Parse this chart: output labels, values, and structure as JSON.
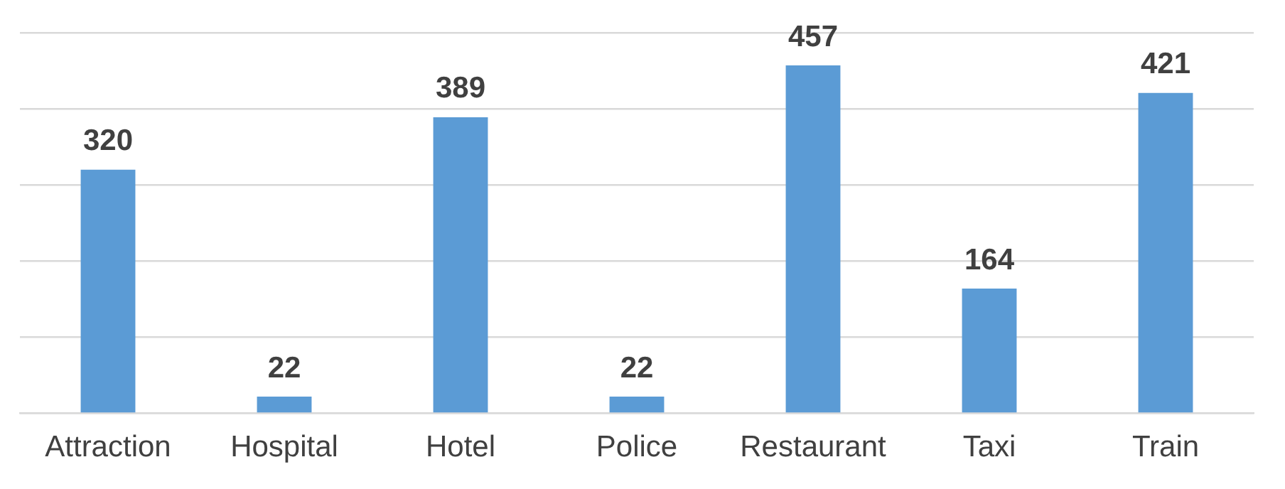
{
  "chart_data": {
    "type": "bar",
    "categories": [
      "Attraction",
      "Hospital",
      "Hotel",
      "Police",
      "Restaurant",
      "Taxi",
      "Train"
    ],
    "values": [
      320,
      22,
      389,
      22,
      457,
      164,
      421
    ],
    "color": "#5b9bd5",
    "ylim": [
      0,
      500
    ],
    "yticks": [
      0,
      100,
      200,
      300,
      400,
      500
    ],
    "grid": "y",
    "tick_labels": "x",
    "data_labels": true
  }
}
